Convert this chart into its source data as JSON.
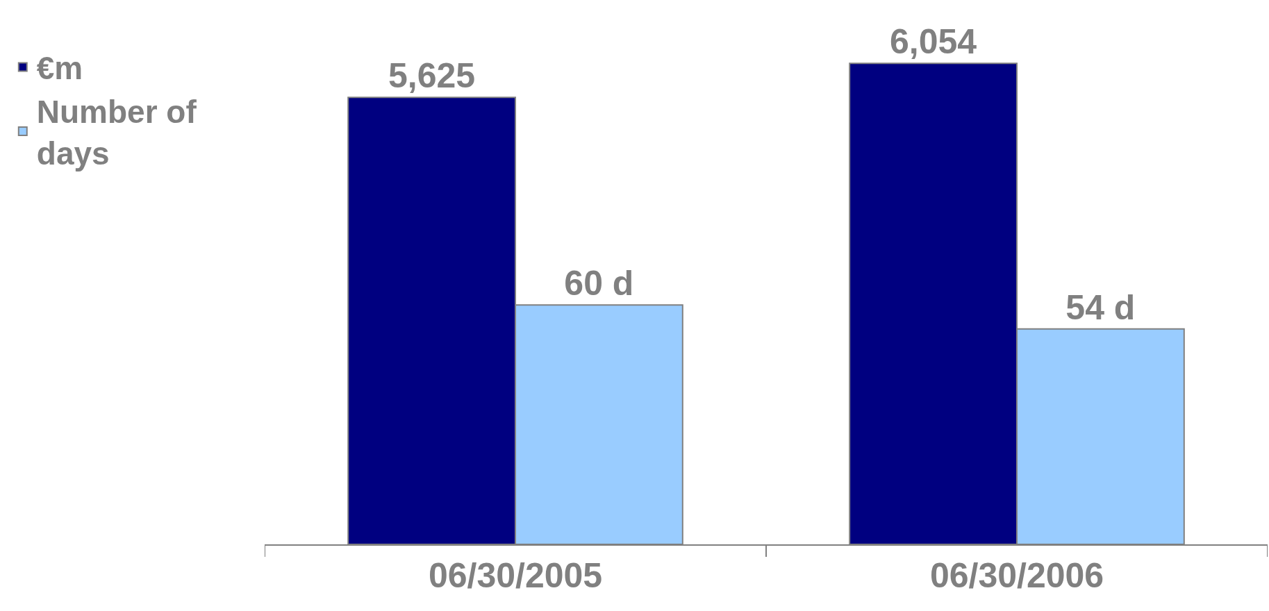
{
  "chart_data": {
    "type": "bar",
    "categories": [
      "06/30/2005",
      "06/30/2006"
    ],
    "series": [
      {
        "name": "€m",
        "color": "#000080",
        "values": [
          5625,
          6054
        ],
        "value_labels": [
          "5,625",
          "6,054"
        ]
      },
      {
        "name": "Number of days",
        "color": "#99ccff",
        "values": [
          60,
          54
        ],
        "value_labels": [
          "60 d",
          "54 d"
        ],
        "axis": "y2"
      }
    ],
    "tick_labels": "x",
    "legend": "left"
  }
}
